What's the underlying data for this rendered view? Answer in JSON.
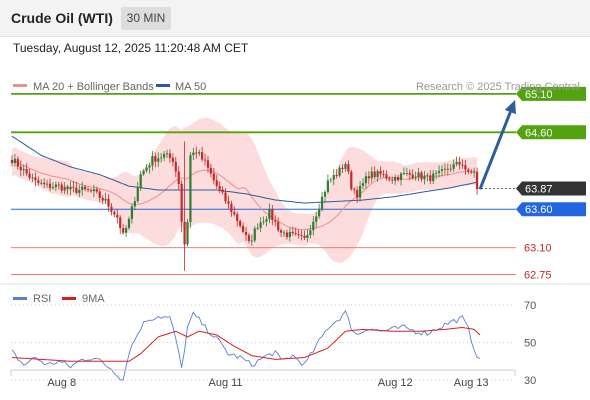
{
  "header": {
    "title": "Crude Oil (WTI)",
    "timeframe": "30 MIN"
  },
  "timestamp": "Tuesday, August 12, 2025 11:20:48 AM CET",
  "copyright": "Research © 2025 Trading Central",
  "colors": {
    "resistance": "#52a30f",
    "support": "#2166e0",
    "minor_level": "#e07070",
    "current": "#333333",
    "bollinger_fill": "#fbd6d6",
    "ma20": "#ef8e8e",
    "ma50": "#2e5a9a",
    "candle_up": "#2e7d32",
    "candle_down": "#c62828",
    "rsi": "#5a7ed0",
    "rsi_ma": "#d62020",
    "arrow": "#2e5d9e"
  },
  "chart_data": [
    {
      "type": "candlestick",
      "legend": [
        {
          "name": "MA 20 + Bollinger Bands",
          "color": "#ef8e8e"
        },
        {
          "name": "MA 50",
          "color": "#2e5a9a"
        }
      ],
      "ylim": [
        62.55,
        65.28
      ],
      "levels": [
        {
          "value": 65.1,
          "label": "65.10",
          "kind": "resistance"
        },
        {
          "value": 64.6,
          "label": "64.60",
          "kind": "resistance"
        },
        {
          "value": 63.87,
          "label": "63.87",
          "kind": "current"
        },
        {
          "value": 63.6,
          "label": "63.60",
          "kind": "support"
        },
        {
          "value": 63.1,
          "label": "63.10",
          "kind": "minor"
        },
        {
          "value": 62.75,
          "label": "62.75",
          "kind": "minor"
        }
      ],
      "x_ticks": [
        {
          "index": 17,
          "label": "Aug 8"
        },
        {
          "index": 73,
          "label": "Aug 11"
        },
        {
          "index": 131,
          "label": "Aug 12"
        },
        {
          "index": 157,
          "label": "Aug 13"
        }
      ],
      "price_keypoints": [
        [
          0,
          64.25
        ],
        [
          4,
          64.1
        ],
        [
          8,
          63.95
        ],
        [
          12,
          63.9
        ],
        [
          16,
          63.9
        ],
        [
          20,
          63.85
        ],
        [
          24,
          63.85
        ],
        [
          28,
          63.82
        ],
        [
          32,
          63.7
        ],
        [
          36,
          63.5
        ],
        [
          38,
          63.25
        ],
        [
          40,
          63.45
        ],
        [
          44,
          64.05
        ],
        [
          48,
          64.25
        ],
        [
          52,
          64.3
        ],
        [
          55,
          64.25
        ],
        [
          57,
          63.95
        ],
        [
          58,
          63.45
        ],
        [
          59,
          63.15
        ],
        [
          60,
          63.45
        ],
        [
          61,
          64.3
        ],
        [
          63,
          64.35
        ],
        [
          66,
          64.2
        ],
        [
          70,
          63.9
        ],
        [
          74,
          63.65
        ],
        [
          78,
          63.4
        ],
        [
          81,
          63.15
        ],
        [
          84,
          63.4
        ],
        [
          88,
          63.55
        ],
        [
          92,
          63.3
        ],
        [
          96,
          63.25
        ],
        [
          100,
          63.2
        ],
        [
          104,
          63.55
        ],
        [
          108,
          63.95
        ],
        [
          112,
          64.1
        ],
        [
          114,
          64.2
        ],
        [
          116,
          63.9
        ],
        [
          118,
          63.8
        ],
        [
          122,
          64.05
        ],
        [
          126,
          64.05
        ],
        [
          130,
          64.0
        ],
        [
          134,
          64.05
        ],
        [
          138,
          64.05
        ],
        [
          142,
          64.0
        ],
        [
          146,
          64.05
        ],
        [
          150,
          64.15
        ],
        [
          154,
          64.2
        ],
        [
          156,
          64.05
        ],
        [
          158,
          64.1
        ],
        [
          159,
          63.85
        ]
      ],
      "ma50_keypoints": [
        [
          0,
          64.55
        ],
        [
          10,
          64.3
        ],
        [
          20,
          64.15
        ],
        [
          30,
          64.05
        ],
        [
          40,
          63.9
        ],
        [
          50,
          63.85
        ],
        [
          60,
          63.85
        ],
        [
          70,
          63.85
        ],
        [
          80,
          63.8
        ],
        [
          90,
          63.72
        ],
        [
          100,
          63.68
        ],
        [
          110,
          63.7
        ],
        [
          120,
          63.72
        ],
        [
          130,
          63.76
        ],
        [
          140,
          63.82
        ],
        [
          150,
          63.88
        ],
        [
          159,
          63.95
        ]
      ],
      "forecast_arrow": {
        "from": [
          160,
          63.86
        ],
        "to": [
          172,
          65.02
        ]
      }
    },
    {
      "type": "line",
      "legend": [
        {
          "name": "RSI",
          "color": "#5a7ed0"
        },
        {
          "name": "9MA",
          "color": "#d62020"
        }
      ],
      "ylim": [
        22,
        78
      ],
      "y_ticks": [
        70,
        50,
        30
      ],
      "rsi_keypoints": [
        [
          0,
          45
        ],
        [
          4,
          38
        ],
        [
          8,
          42
        ],
        [
          12,
          38
        ],
        [
          16,
          40
        ],
        [
          20,
          37
        ],
        [
          24,
          41
        ],
        [
          28,
          42
        ],
        [
          30,
          40
        ],
        [
          34,
          36
        ],
        [
          38,
          30
        ],
        [
          40,
          45
        ],
        [
          44,
          58
        ],
        [
          46,
          62
        ],
        [
          50,
          64
        ],
        [
          54,
          63
        ],
        [
          56,
          52
        ],
        [
          58,
          36
        ],
        [
          60,
          58
        ],
        [
          62,
          65
        ],
        [
          64,
          62
        ],
        [
          66,
          58
        ],
        [
          70,
          52
        ],
        [
          74,
          44
        ],
        [
          78,
          42
        ],
        [
          82,
          38
        ],
        [
          86,
          42
        ],
        [
          90,
          45
        ],
        [
          92,
          40
        ],
        [
          96,
          43
        ],
        [
          100,
          38
        ],
        [
          104,
          48
        ],
        [
          108,
          58
        ],
        [
          112,
          63
        ],
        [
          114,
          66
        ],
        [
          116,
          58
        ],
        [
          118,
          54
        ],
        [
          122,
          58
        ],
        [
          126,
          56
        ],
        [
          130,
          57
        ],
        [
          134,
          58
        ],
        [
          138,
          56
        ],
        [
          142,
          55
        ],
        [
          146,
          58
        ],
        [
          150,
          61
        ],
        [
          154,
          63
        ],
        [
          156,
          57
        ],
        [
          158,
          47
        ],
        [
          160,
          40
        ]
      ],
      "ma_keypoints": [
        [
          0,
          42
        ],
        [
          10,
          41
        ],
        [
          20,
          40
        ],
        [
          30,
          40
        ],
        [
          40,
          40
        ],
        [
          44,
          44
        ],
        [
          50,
          53
        ],
        [
          56,
          56
        ],
        [
          60,
          53
        ],
        [
          64,
          56
        ],
        [
          70,
          54
        ],
        [
          76,
          48
        ],
        [
          82,
          43
        ],
        [
          90,
          41
        ],
        [
          100,
          42
        ],
        [
          108,
          47
        ],
        [
          114,
          56
        ],
        [
          120,
          57
        ],
        [
          130,
          56
        ],
        [
          140,
          56
        ],
        [
          148,
          57
        ],
        [
          154,
          58
        ],
        [
          158,
          57
        ],
        [
          160,
          54
        ]
      ]
    }
  ]
}
